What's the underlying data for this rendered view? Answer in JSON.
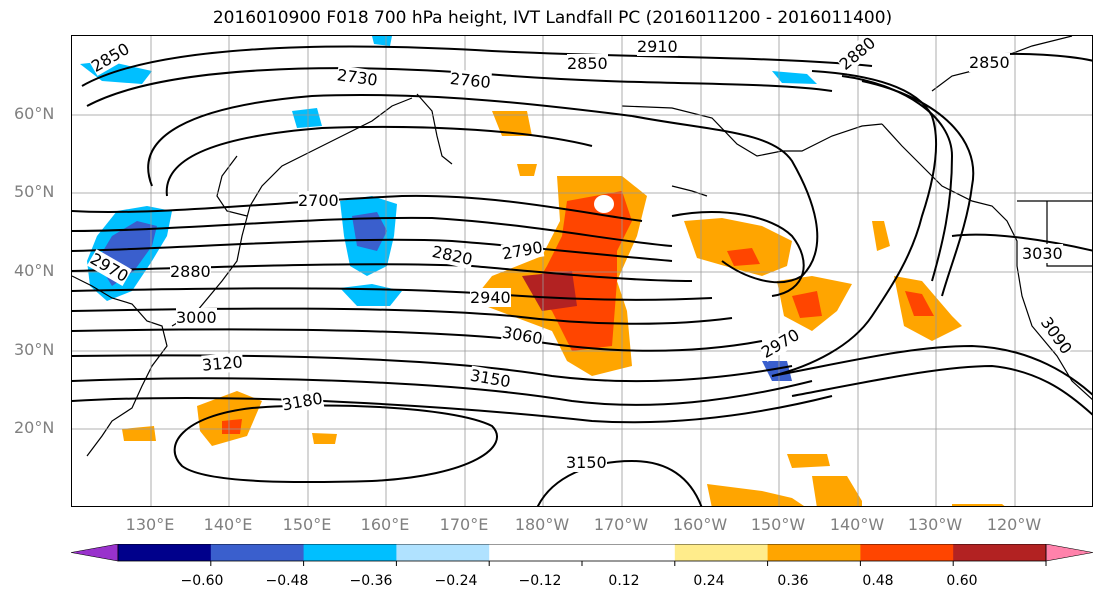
{
  "title": "2016010900 F018 700 hPa height, IVT Landfall PC (2016011200 - 2016011400)",
  "lat_labels": [
    "60°N",
    "50°N",
    "40°N",
    "30°N",
    "20°N"
  ],
  "lon_labels": [
    "130°E",
    "140°E",
    "150°E",
    "160°E",
    "170°E",
    "180°W",
    "170°W",
    "160°W",
    "150°W",
    "140°W",
    "130°W",
    "120°W"
  ],
  "contour_labels": [
    "2850",
    "2910",
    "2850",
    "2880",
    "2850",
    "2730",
    "2760",
    "2700",
    "2970",
    "2880",
    "2820",
    "2790",
    "2940",
    "3000",
    "3060",
    "3030",
    "3090",
    "2970",
    "3120",
    "3150",
    "3180",
    "3150"
  ],
  "colorbar": {
    "colors": [
      "#9932cc",
      "#00008b",
      "#3a5fcd",
      "#00bfff",
      "#b0e2ff",
      "#ffffff",
      "#ffffff",
      "#ffec8b",
      "#ffa500",
      "#ff4500",
      "#b22222",
      "#ff82ab"
    ],
    "ticks": [
      "−0.60",
      "−0.48",
      "−0.36",
      "−0.24",
      "−0.12",
      "0.12",
      "0.24",
      "0.36",
      "0.48",
      "0.60"
    ]
  }
}
